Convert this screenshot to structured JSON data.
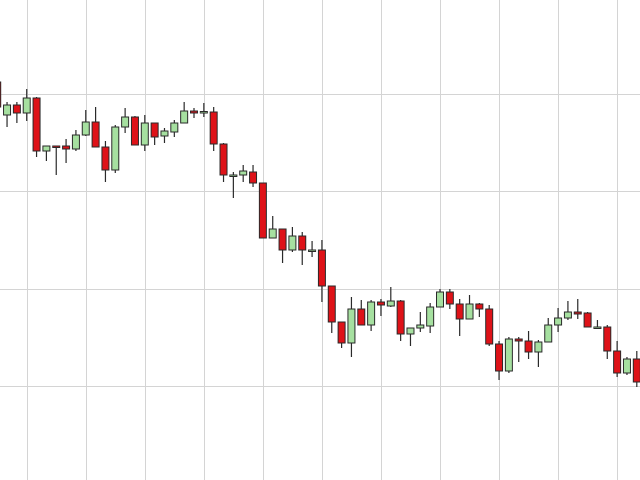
{
  "chart_data": {
    "type": "candlestick",
    "title": "",
    "xlabel": "",
    "ylabel": "",
    "ylim": [
      0,
      50
    ],
    "grid": true,
    "grid_y": [
      40.6,
      30.9,
      21.1,
      11.4
    ],
    "grid_x_start_index": 3,
    "grid_x_every": 6,
    "colors": {
      "up": "#a6e0a0",
      "down": "#de1218",
      "outline": "#2a2a2a",
      "grid": "#d4d4d4",
      "background": "#ffffff"
    },
    "ohlc_fields": [
      "open",
      "high",
      "low",
      "close"
    ],
    "candles": [
      [
        41.8,
        42.0,
        39.0,
        39.3
      ],
      [
        38.5,
        39.8,
        37.3,
        39.5
      ],
      [
        39.5,
        39.8,
        37.7,
        38.7
      ],
      [
        38.7,
        41.1,
        37.9,
        40.2
      ],
      [
        40.2,
        40.3,
        34.3,
        34.9
      ],
      [
        34.9,
        35.4,
        33.9,
        35.4
      ],
      [
        35.4,
        35.4,
        32.5,
        35.35
      ],
      [
        35.4,
        36.1,
        33.7,
        35.1
      ],
      [
        35.1,
        37.0,
        34.9,
        36.5
      ],
      [
        36.5,
        39.0,
        36.4,
        37.8
      ],
      [
        37.8,
        39.3,
        35.3,
        35.3
      ],
      [
        35.3,
        35.9,
        31.8,
        33.0
      ],
      [
        33.0,
        37.5,
        32.7,
        37.3
      ],
      [
        37.3,
        39.2,
        36.7,
        38.3
      ],
      [
        38.3,
        38.4,
        35.5,
        35.5
      ],
      [
        35.5,
        38.5,
        34.9,
        37.7
      ],
      [
        37.7,
        37.7,
        35.5,
        36.3
      ],
      [
        36.4,
        37.2,
        35.7,
        36.9
      ],
      [
        36.8,
        38.0,
        36.3,
        37.7
      ],
      [
        37.7,
        39.8,
        37.7,
        38.9
      ],
      [
        38.9,
        39.2,
        38.2,
        38.7
      ],
      [
        38.8,
        39.7,
        38.3,
        38.85
      ],
      [
        38.8,
        39.3,
        34.9,
        35.6
      ],
      [
        35.6,
        35.7,
        31.8,
        32.5
      ],
      [
        32.5,
        32.8,
        30.2,
        32.5
      ],
      [
        32.5,
        33.5,
        31.8,
        32.9
      ],
      [
        32.8,
        33.5,
        31.3,
        31.7
      ],
      [
        31.7,
        31.7,
        26.2,
        26.2
      ],
      [
        26.2,
        28.4,
        26.2,
        27.1
      ],
      [
        27.1,
        27.1,
        23.7,
        25.0
      ],
      [
        25.0,
        27.3,
        24.8,
        26.4
      ],
      [
        26.4,
        26.8,
        23.5,
        25.0
      ],
      [
        25.0,
        25.9,
        24.3,
        25.0
      ],
      [
        25.0,
        26.0,
        19.8,
        21.4
      ],
      [
        21.4,
        21.4,
        16.7,
        17.8
      ],
      [
        17.8,
        17.8,
        15.2,
        15.7
      ],
      [
        15.7,
        20.3,
        14.3,
        19.1
      ],
      [
        19.1,
        20.0,
        17.5,
        17.5
      ],
      [
        17.5,
        20.0,
        16.9,
        19.8
      ],
      [
        19.8,
        20.1,
        18.4,
        19.5
      ],
      [
        19.4,
        21.3,
        19.3,
        19.9
      ],
      [
        19.9,
        20.0,
        15.9,
        16.6
      ],
      [
        16.6,
        17.2,
        15.4,
        17.2
      ],
      [
        17.2,
        18.8,
        16.8,
        17.5
      ],
      [
        17.4,
        19.7,
        16.7,
        19.3
      ],
      [
        19.3,
        21.1,
        19.3,
        20.8
      ],
      [
        20.8,
        21.1,
        19.1,
        19.6
      ],
      [
        19.6,
        20.1,
        16.4,
        18.1
      ],
      [
        18.1,
        20.5,
        18.1,
        19.6
      ],
      [
        19.6,
        19.7,
        18.3,
        19.1
      ],
      [
        19.1,
        19.5,
        15.4,
        15.6
      ],
      [
        15.6,
        15.9,
        12.0,
        12.9
      ],
      [
        12.9,
        16.3,
        12.7,
        16.1
      ],
      [
        16.1,
        16.3,
        13.8,
        15.9
      ],
      [
        15.9,
        16.9,
        14.1,
        14.8
      ],
      [
        14.8,
        16.0,
        13.3,
        15.8
      ],
      [
        15.8,
        18.2,
        15.8,
        17.5
      ],
      [
        17.5,
        19.2,
        16.8,
        18.2
      ],
      [
        18.2,
        19.9,
        18.0,
        18.8
      ],
      [
        18.8,
        20.1,
        18.1,
        18.6
      ],
      [
        18.7,
        18.8,
        17.3,
        17.3
      ],
      [
        17.3,
        18.0,
        17.2,
        17.3
      ],
      [
        17.3,
        17.5,
        14.1,
        14.9
      ],
      [
        14.9,
        15.9,
        12.3,
        12.7
      ],
      [
        12.7,
        14.3,
        12.5,
        14.1
      ],
      [
        14.1,
        14.9,
        11.3,
        11.8
      ]
    ]
  }
}
